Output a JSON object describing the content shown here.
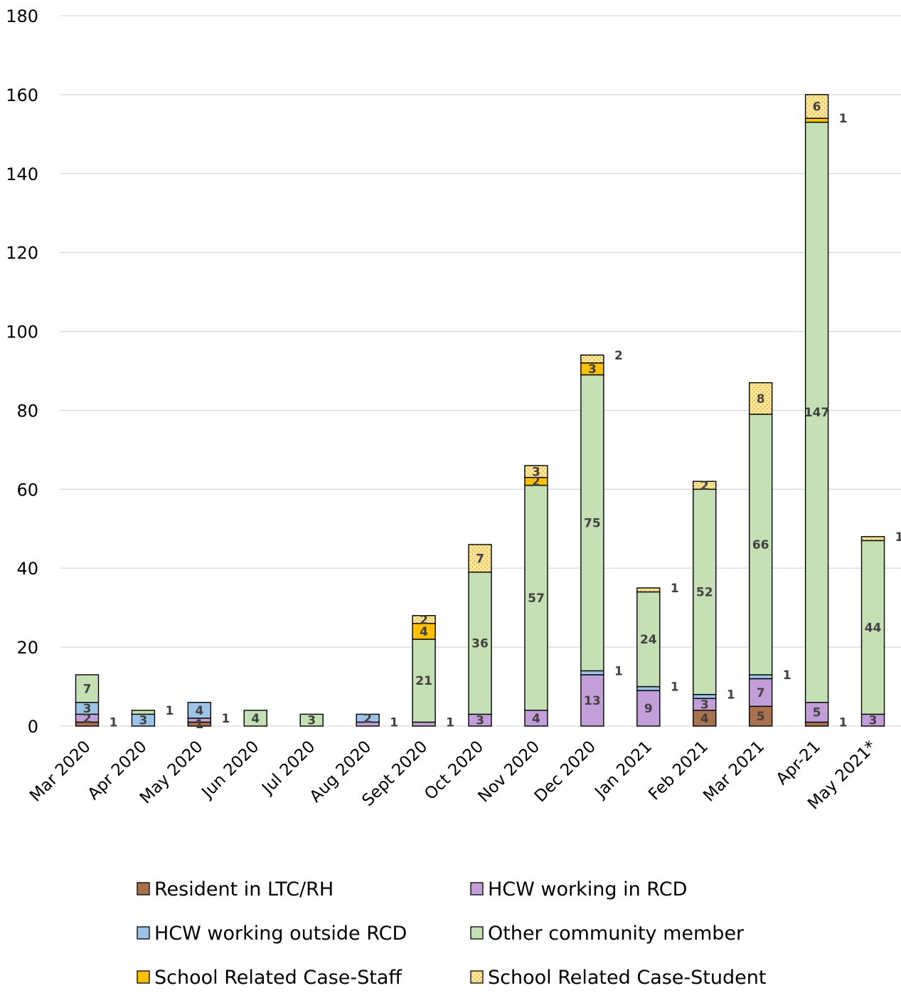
{
  "chart_data": {
    "type": "bar",
    "stacked": true,
    "title": "",
    "xlabel": "",
    "ylabel": "",
    "ylim": [
      0,
      180
    ],
    "yticks": [
      0,
      20,
      40,
      60,
      80,
      100,
      120,
      140,
      160,
      180
    ],
    "grid": true,
    "legend_position": "bottom",
    "categories": [
      "Mar 2020",
      "Apr 2020",
      "May 2020",
      "Jun 2020",
      "Jul 2020",
      "Aug 2020",
      "Sept 2020",
      "Oct 2020",
      "Nov 2020",
      "Dec 2020",
      "Jan 2021",
      "Feb 2021",
      "Mar 2021",
      "Apr-21",
      "May 2021*"
    ],
    "series": [
      {
        "name": "Resident in LTC/RH",
        "color": "#a9724f",
        "pattern": "none",
        "values": [
          1,
          0,
          1,
          0,
          0,
          0,
          0,
          0,
          0,
          0,
          0,
          4,
          5,
          1,
          0
        ]
      },
      {
        "name": "HCW working in RCD",
        "color": "#c29fd9",
        "pattern": "none",
        "values": [
          2,
          0,
          1,
          0,
          0,
          1,
          1,
          3,
          4,
          13,
          9,
          3,
          7,
          5,
          3
        ]
      },
      {
        "name": "HCW working outside RCD",
        "color": "#9dc3e6",
        "pattern": "none",
        "values": [
          3,
          3,
          4,
          0,
          0,
          2,
          0,
          0,
          0,
          1,
          1,
          1,
          1,
          0,
          0
        ]
      },
      {
        "name": "Other community member",
        "color": "#c5e0b4",
        "pattern": "none",
        "values": [
          7,
          1,
          0,
          4,
          3,
          0,
          21,
          36,
          57,
          75,
          24,
          52,
          66,
          147,
          44
        ]
      },
      {
        "name": "School Related Case-Staff",
        "color": "#ffc000",
        "pattern": "none",
        "values": [
          0,
          0,
          0,
          0,
          0,
          0,
          4,
          0,
          2,
          3,
          0,
          0,
          0,
          1,
          0
        ]
      },
      {
        "name": "School Related Case-Student",
        "color": "#ffe699",
        "pattern": "dots",
        "values": [
          0,
          0,
          0,
          0,
          0,
          0,
          2,
          7,
          3,
          2,
          1,
          2,
          8,
          6,
          1
        ]
      }
    ],
    "data_labels": [
      {
        "category": "Mar 2020",
        "text": "2",
        "position": "inside"
      },
      {
        "category": "Mar 2020",
        "text": "3",
        "position": "inside"
      },
      {
        "category": "Mar 2020",
        "text": "7",
        "position": "inside"
      },
      {
        "category": "Mar 2020",
        "text": "1",
        "position": "outside"
      },
      {
        "category": "Apr 2020",
        "text": "3",
        "position": "inside"
      },
      {
        "category": "Apr 2020",
        "text": "1",
        "position": "outside"
      },
      {
        "category": "May 2020",
        "text": "1",
        "position": "inside"
      },
      {
        "category": "May 2020",
        "text": "4",
        "position": "inside"
      },
      {
        "category": "May 2020",
        "text": "1",
        "position": "outside"
      },
      {
        "category": "Jun 2020",
        "text": "4",
        "position": "inside"
      },
      {
        "category": "Jul 2020",
        "text": "3",
        "position": "inside"
      },
      {
        "category": "Aug 2020",
        "text": "2",
        "position": "inside"
      },
      {
        "category": "Aug 2020",
        "text": "1",
        "position": "outside"
      },
      {
        "category": "Sept 2020",
        "text": "21",
        "position": "inside"
      },
      {
        "category": "Sept 2020",
        "text": "4",
        "position": "inside"
      },
      {
        "category": "Sept 2020",
        "text": "2",
        "position": "inside"
      },
      {
        "category": "Sept 2020",
        "text": "1",
        "position": "outside"
      },
      {
        "category": "Oct 2020",
        "text": "3",
        "position": "inside"
      },
      {
        "category": "Oct 2020",
        "text": "36",
        "position": "inside"
      },
      {
        "category": "Oct 2020",
        "text": "7",
        "position": "inside"
      },
      {
        "category": "Nov 2020",
        "text": "4",
        "position": "inside"
      },
      {
        "category": "Nov 2020",
        "text": "57",
        "position": "inside"
      },
      {
        "category": "Nov 2020",
        "text": "2",
        "position": "inside"
      },
      {
        "category": "Nov 2020",
        "text": "3",
        "position": "inside"
      },
      {
        "category": "Dec 2020",
        "text": "13",
        "position": "inside"
      },
      {
        "category": "Dec 2020",
        "text": "75",
        "position": "inside"
      },
      {
        "category": "Dec 2020",
        "text": "3",
        "position": "inside"
      },
      {
        "category": "Dec 2020",
        "text": "1",
        "position": "outside"
      },
      {
        "category": "Dec 2020",
        "text": "2",
        "position": "outside"
      },
      {
        "category": "Jan 2021",
        "text": "9",
        "position": "inside"
      },
      {
        "category": "Jan 2021",
        "text": "24",
        "position": "inside"
      },
      {
        "category": "Jan 2021",
        "text": "1",
        "position": "outside"
      },
      {
        "category": "Jan 2021",
        "text": "1",
        "position": "outside"
      },
      {
        "category": "Feb 2021",
        "text": "4",
        "position": "inside"
      },
      {
        "category": "Feb 2021",
        "text": "3",
        "position": "inside"
      },
      {
        "category": "Feb 2021",
        "text": "52",
        "position": "inside"
      },
      {
        "category": "Feb 2021",
        "text": "2",
        "position": "inside"
      },
      {
        "category": "Feb 2021",
        "text": "1",
        "position": "outside"
      },
      {
        "category": "Mar 2021",
        "text": "5",
        "position": "inside"
      },
      {
        "category": "Mar 2021",
        "text": "7",
        "position": "inside"
      },
      {
        "category": "Mar 2021",
        "text": "66",
        "position": "inside"
      },
      {
        "category": "Mar 2021",
        "text": "8",
        "position": "inside"
      },
      {
        "category": "Mar 2021",
        "text": "1",
        "position": "outside"
      },
      {
        "category": "Apr-21",
        "text": "5",
        "position": "inside"
      },
      {
        "category": "Apr-21",
        "text": "147",
        "position": "inside"
      },
      {
        "category": "Apr-21",
        "text": "6",
        "position": "inside"
      },
      {
        "category": "Apr-21",
        "text": "1",
        "position": "outside"
      },
      {
        "category": "Apr-21",
        "text": "1",
        "position": "outside"
      },
      {
        "category": "May 2021*",
        "text": "3",
        "position": "inside"
      },
      {
        "category": "May 2021*",
        "text": "44",
        "position": "inside"
      },
      {
        "category": "May 2021*",
        "text": "1",
        "position": "outside"
      }
    ]
  }
}
